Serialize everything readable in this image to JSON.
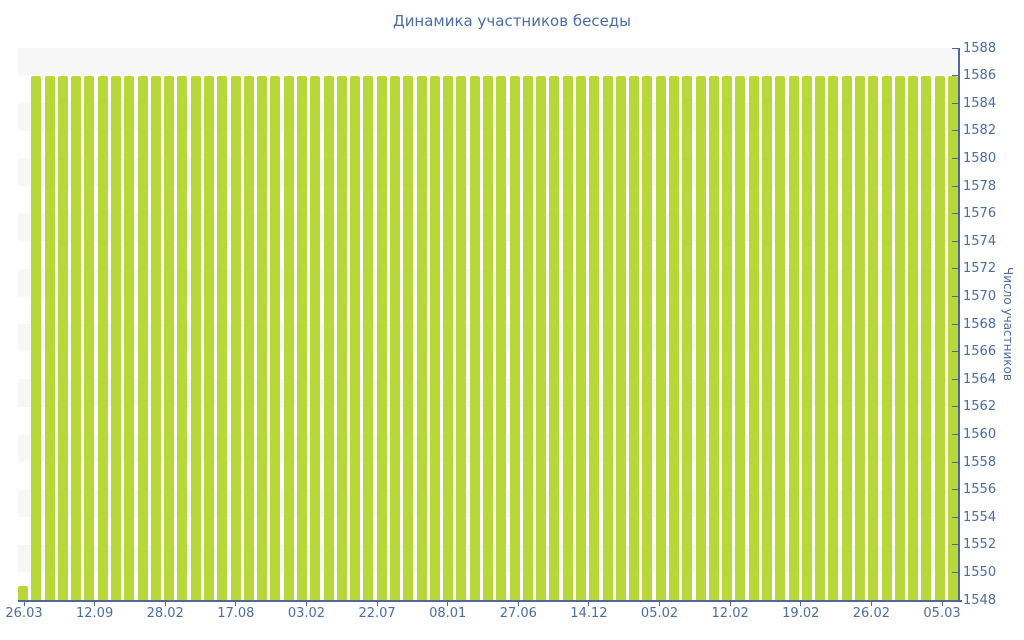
{
  "colors": {
    "bar": "#b8d83a",
    "band": "#f7f7f7",
    "axis": "#51669b",
    "text": "#4a6da8"
  },
  "chart_data": {
    "type": "bar",
    "title": "Динамика участников беседы",
    "xlabel": "",
    "ylabel": "Число участников",
    "ylim": [
      1548,
      1588
    ],
    "ytick_step": 2,
    "grid": "alternating-horizontal-bands",
    "legend": "none",
    "y_axis_position": "right",
    "x_tick_labels": [
      "26.03",
      "12.09",
      "28.02",
      "17.08",
      "03.02",
      "22.07",
      "08.01",
      "27.06",
      "14.12",
      "05.02",
      "12.02",
      "19.02",
      "26.02",
      "05.03"
    ],
    "values": [
      1549,
      1586,
      1586,
      1586,
      1586,
      1586,
      1586,
      1586,
      1586,
      1586,
      1586,
      1586,
      1586,
      1586,
      1586,
      1586,
      1586,
      1586,
      1586,
      1586,
      1586,
      1586,
      1586,
      1586,
      1586,
      1586,
      1586,
      1586,
      1586,
      1586,
      1586,
      1586,
      1586,
      1586,
      1586,
      1586,
      1586,
      1586,
      1586,
      1586,
      1586,
      1586,
      1586,
      1586,
      1586,
      1586,
      1586,
      1586,
      1586,
      1586,
      1586,
      1586,
      1586,
      1586,
      1586,
      1586,
      1586,
      1586,
      1586,
      1586,
      1586,
      1586,
      1586,
      1586,
      1586,
      1586,
      1586,
      1586,
      1586,
      1586,
      1586
    ]
  }
}
